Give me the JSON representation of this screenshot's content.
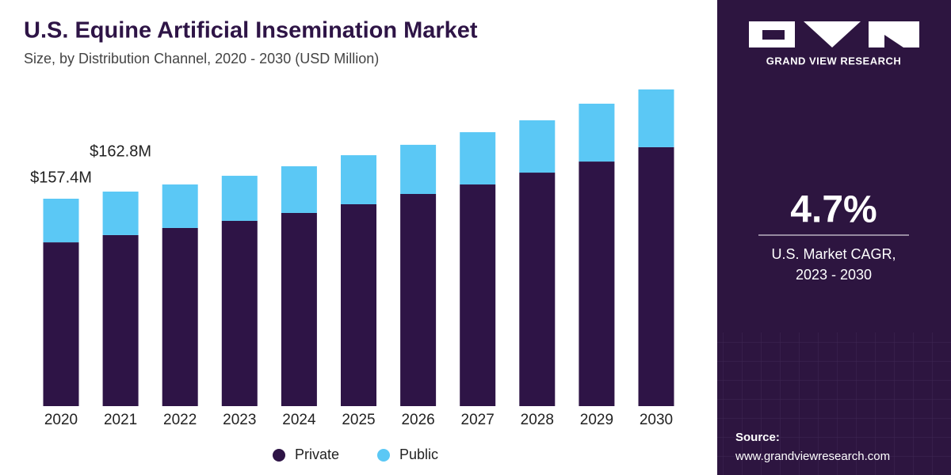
{
  "chart_data": {
    "type": "stacked-bar",
    "title": "U.S. Equine Artificial Insemination Market",
    "subtitle": "Size, by Distribution Channel, 2020 - 2030 (USD Million)",
    "categories": [
      "2020",
      "2021",
      "2022",
      "2023",
      "2024",
      "2025",
      "2026",
      "2027",
      "2028",
      "2029",
      "2030"
    ],
    "series": [
      {
        "name": "Private",
        "color": "#2e1446",
        "values": [
          124.3,
          129.8,
          135.2,
          140.6,
          146.6,
          153.2,
          161.0,
          168.2,
          177.2,
          185.6,
          196.5
        ]
      },
      {
        "name": "Public",
        "color": "#5bc8f5",
        "values": [
          33.1,
          33.0,
          33.0,
          34.2,
          35.4,
          37.2,
          37.3,
          39.7,
          39.7,
          43.9,
          43.8
        ]
      }
    ],
    "annotations": [
      {
        "category": "2020",
        "value": 157.4,
        "label": "$157.4M"
      },
      {
        "category": "2021",
        "value": 162.8,
        "label": "$162.8M"
      }
    ],
    "legend": "bottom"
  },
  "sidebar": {
    "brand": "GRAND VIEW RESEARCH",
    "cagr": "4.7%",
    "cagr_label": "U.S. Market CAGR,",
    "cagr_period": "2023 - 2030",
    "source_label": "Source:",
    "source_url": "www.grandviewresearch.com"
  }
}
